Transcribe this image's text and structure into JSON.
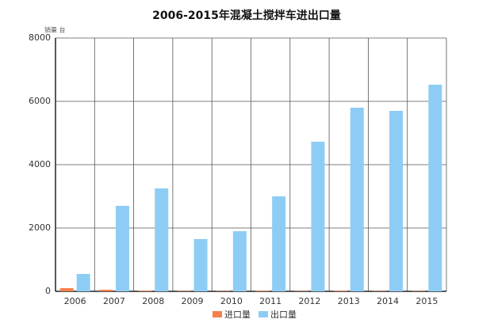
{
  "chart_data": {
    "type": "bar",
    "title": "2006-2015年混凝土搅拌车进出口量",
    "y_label": "销量 台",
    "categories": [
      "2006",
      "2007",
      "2008",
      "2009",
      "2010",
      "2011",
      "2012",
      "2013",
      "2014",
      "2015"
    ],
    "series": [
      {
        "name": "进口量",
        "color": "#f4804c",
        "values": [
          100,
          50,
          20,
          10,
          10,
          20,
          10,
          20,
          10,
          10
        ]
      },
      {
        "name": "出口量",
        "color": "#8dcdf5",
        "values": [
          550,
          2700,
          3250,
          1650,
          1900,
          3000,
          4725,
          5800,
          5700,
          6525
        ]
      }
    ],
    "ylim": [
      0,
      8000
    ],
    "yticks": [
      0,
      2000,
      4000,
      6000,
      8000
    ],
    "grid": true,
    "legend": "bottom"
  }
}
